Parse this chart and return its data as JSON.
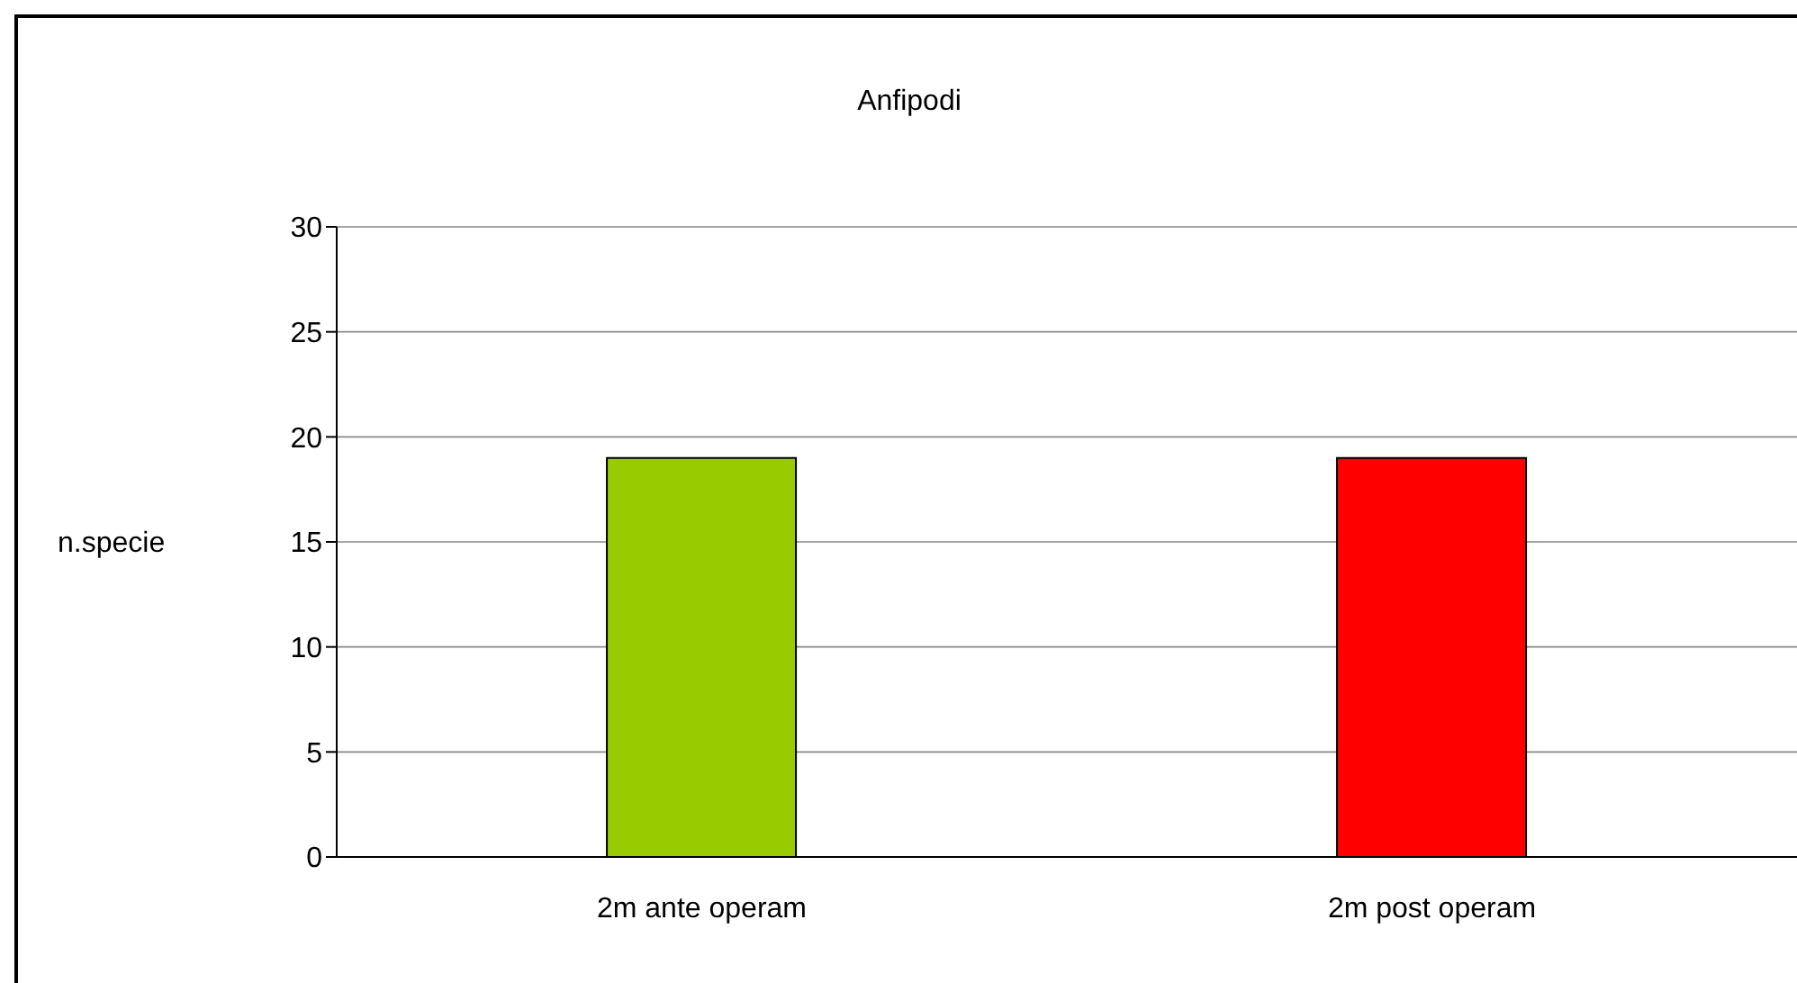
{
  "chart_data": {
    "type": "bar",
    "title": "Anfipodi",
    "ylabel": "n.specie",
    "categories": [
      "2m ante operam",
      "2m post operam"
    ],
    "values": [
      19,
      19
    ],
    "colors": [
      "#99cc00",
      "#ff0000"
    ],
    "ylim": [
      0,
      30
    ],
    "yticks": [
      0,
      5,
      10,
      15,
      20,
      25,
      30
    ],
    "grid": "y"
  }
}
